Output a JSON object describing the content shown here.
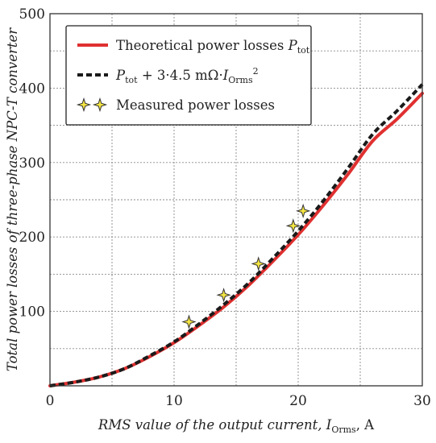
{
  "chart_data": {
    "type": "line",
    "xlim": [
      0,
      30
    ],
    "ylim": [
      0,
      500
    ],
    "x_ticks": [
      10,
      20,
      30
    ],
    "y_ticks": [
      100,
      200,
      300,
      400,
      500
    ],
    "x_origin_label": "0",
    "grid": true,
    "legend_position": "top-left",
    "xlabel": {
      "main": "RMS value of the output current, ",
      "var": "I",
      "sub": "Orms",
      "unit": ", A"
    },
    "ylabel": "Total power losses of three-phase NPC-T converter",
    "series": [
      {
        "name": "Theoretical power losses P_tot",
        "legend": {
          "text": "Theoretical power losses ",
          "var": "P",
          "sub": "tot"
        },
        "style": "solid",
        "color": "#e03030",
        "x": [
          0,
          2,
          4,
          6,
          8,
          10,
          12,
          14,
          16,
          18,
          20,
          22,
          24,
          26,
          28,
          30
        ],
        "y": [
          0,
          5,
          12,
          23,
          39,
          58,
          81,
          106,
          135,
          168,
          203,
          242,
          284,
          329,
          359,
          393
        ]
      },
      {
        "name": "P_tot + 3·4.5 mΩ·I_Orms²",
        "legend": {
          "var": "P",
          "sub": "tot",
          "text": " + 3·4.5 mΩ·",
          "var2": "I",
          "sub2": "Orms",
          "sup": "2"
        },
        "style": "dashed",
        "color": "#1a1a1a",
        "x": [
          0,
          2,
          4,
          6,
          8,
          10,
          12,
          14,
          16,
          18,
          20,
          22,
          24,
          26,
          28,
          30
        ],
        "y": [
          0,
          5,
          12,
          23,
          40,
          59,
          83,
          109,
          138,
          172,
          208,
          248,
          292,
          338,
          370,
          405
        ]
      },
      {
        "name": "Measured power losses",
        "legend": {
          "text": "Measured power losses"
        },
        "style": "markers",
        "color": "#f5e642",
        "x": [
          11.2,
          14.0,
          16.8,
          19.6,
          20.4
        ],
        "y": [
          86,
          122,
          164,
          215,
          235
        ]
      }
    ]
  }
}
